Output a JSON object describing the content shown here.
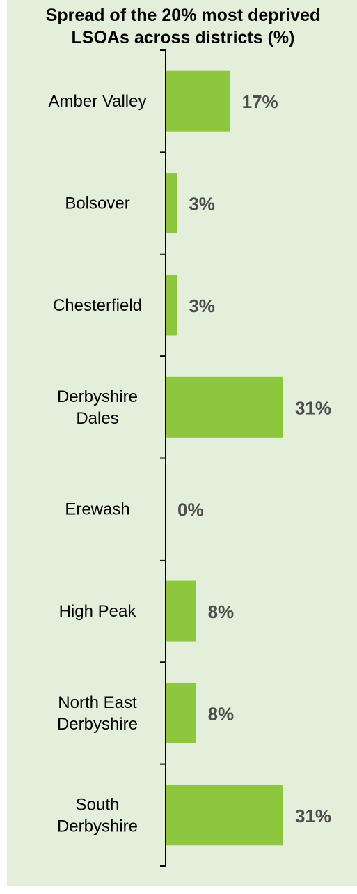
{
  "chart_data": {
    "type": "bar",
    "orientation": "horizontal",
    "title_lines": [
      "Spread of the 20% most deprived",
      "LSOAs across districts (%)"
    ],
    "categories": [
      [
        "Amber Valley"
      ],
      [
        "Bolsover"
      ],
      [
        "Chesterfield"
      ],
      [
        "Derbyshire",
        "Dales"
      ],
      [
        "Erewash"
      ],
      [
        "High Peak"
      ],
      [
        "North East",
        "Derbyshire"
      ],
      [
        "South",
        "Derbyshire"
      ]
    ],
    "values": [
      17,
      3,
      3,
      31,
      0,
      8,
      8,
      31
    ],
    "value_labels": [
      "17%",
      "3%",
      "3%",
      "31%",
      "0%",
      "8%",
      "8%",
      "31%"
    ],
    "xlim": [
      0,
      100
    ],
    "grid": false,
    "colors": {
      "bar": "#8dc63f",
      "background": "#e3efdb",
      "value_label": "#4d4d4d"
    }
  }
}
